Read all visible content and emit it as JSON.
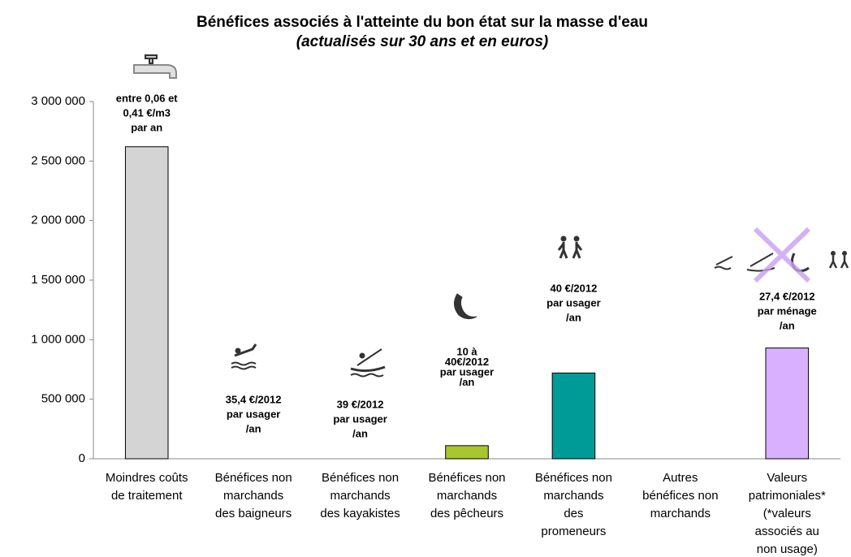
{
  "chart_data": {
    "type": "bar",
    "title": "Bénéfices associés à l'atteinte du bon état sur la masse d'eau",
    "subtitle": "(actualisés sur 30 ans et en euros)",
    "categories": [
      [
        "Moindres coûts",
        "de traitement"
      ],
      [
        "Bénéfices non",
        "marchands",
        "des baigneurs"
      ],
      [
        "Bénéfices non",
        "marchands",
        "des kayakistes"
      ],
      [
        "Bénéfices non",
        "marchands",
        "des pêcheurs"
      ],
      [
        "Bénéfices non",
        "marchands",
        "des",
        "promeneurs"
      ],
      [
        "Autres",
        "bénéfices non",
        "marchands"
      ],
      [
        "Valeurs",
        "patrimoniales*",
        "(*valeurs",
        "associés au",
        "non usage)"
      ]
    ],
    "values": [
      2620000,
      0,
      0,
      110000,
      720000,
      0,
      930000
    ],
    "colors": [
      "#d4d4d4",
      "#d4d4d4",
      "#d4d4d4",
      "#a8c62e",
      "#009b96",
      "#d4d4d4",
      "#d9b0ff"
    ],
    "annotations": [
      [
        "entre 0,06 et",
        "0,41 €/m3",
        "par an"
      ],
      [
        "35,4 €/2012",
        "par usager",
        "/an"
      ],
      [
        "39 €/2012",
        "par usager",
        "/an"
      ],
      [
        "10 à",
        "40€/2012",
        "par usager",
        "/an"
      ],
      [
        "40 €/2012",
        "par usager",
        "/an"
      ],
      null,
      [
        "27,4 €/2012",
        "par ménage",
        "/an"
      ]
    ],
    "ylim": [
      0,
      3000000
    ],
    "yticks": [
      {
        "value": 0,
        "label": "0"
      },
      {
        "value": 500000,
        "label": "500 000"
      },
      {
        "value": 1000000,
        "label": "1 000 000"
      },
      {
        "value": 1500000,
        "label": "1 500 000"
      },
      {
        "value": 2000000,
        "label": "2 000 000"
      },
      {
        "value": 2500000,
        "label": "2 500 000"
      },
      {
        "value": 3000000,
        "label": "3 000 000"
      }
    ],
    "grid": false
  }
}
